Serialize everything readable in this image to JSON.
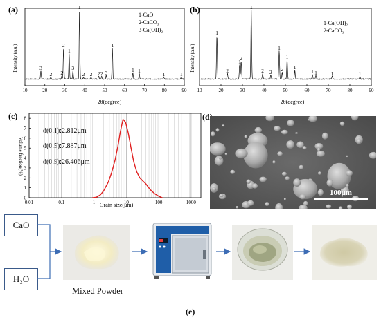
{
  "panel_a": {
    "label": "(a)",
    "ylabel": "Intensity (a.u.)",
    "xlabel": "2θ(degree)",
    "xticks": [
      "10",
      "20",
      "30",
      "40",
      "50",
      "60",
      "70",
      "80",
      "90"
    ],
    "legend": [
      "1-CaO",
      "2-CaCO₃",
      "3-Ca(OH)₂"
    ]
  },
  "panel_b": {
    "label": "(b)",
    "ylabel": "Intensity (a.u.)",
    "xlabel": "2θ(degree)",
    "xticks": [
      "10",
      "20",
      "30",
      "40",
      "50",
      "60",
      "70",
      "80",
      "90"
    ],
    "legend": [
      "1-Ca(OH)₂",
      "2-CaCO₃"
    ]
  },
  "panel_c": {
    "label": "(c)",
    "ylabel": "Volume fraction(%)",
    "xlabel": "Grain size(μm)",
    "yticks": [
      "0",
      "1",
      "2",
      "3",
      "4",
      "5",
      "6",
      "7",
      "8"
    ],
    "xticks": [
      "0.01",
      "0.1",
      "1",
      "10",
      "100",
      "1000"
    ],
    "annotations": [
      "d(0.1):2.812μm",
      "d(0.5):7.887μm",
      "d(0.9):26.406μm"
    ]
  },
  "panel_d": {
    "label": "(d)",
    "scale_bar": "100μm"
  },
  "panel_e": {
    "label": "(e)",
    "input1": "CaO",
    "input2": "H₂O",
    "mixed_caption": "Mixed Powder"
  },
  "chart_data": [
    {
      "type": "line",
      "title": "",
      "xlabel": "2θ(degree)",
      "ylabel": "Intensity (a.u.)",
      "xlim": [
        10,
        90
      ],
      "peaks": [
        {
          "x": 18.0,
          "h": 0.12,
          "label": "3"
        },
        {
          "x": 23.0,
          "h": 0.03,
          "label": "2"
        },
        {
          "x": 28.5,
          "h": 0.05,
          "label": "2"
        },
        {
          "x": 29.4,
          "h": 0.45,
          "label": "2"
        },
        {
          "x": 32.2,
          "h": 0.37,
          "label": "1"
        },
        {
          "x": 34.1,
          "h": 0.12,
          "label": "3"
        },
        {
          "x": 37.4,
          "h": 1.0,
          "label": "1"
        },
        {
          "x": 39.4,
          "h": 0.03,
          "label": "2"
        },
        {
          "x": 43.2,
          "h": 0.03,
          "label": "2"
        },
        {
          "x": 47.1,
          "h": 0.04,
          "label": "2"
        },
        {
          "x": 48.5,
          "h": 0.04,
          "label": "2"
        },
        {
          "x": 50.8,
          "h": 0.05,
          "label": "3"
        },
        {
          "x": 53.9,
          "h": 0.45,
          "label": "1"
        },
        {
          "x": 64.2,
          "h": 0.09,
          "label": "1"
        },
        {
          "x": 67.4,
          "h": 0.08,
          "label": "1"
        },
        {
          "x": 79.7,
          "h": 0.03,
          "label": "1"
        },
        {
          "x": 88.5,
          "h": 0.03,
          "label": "1"
        }
      ]
    },
    {
      "type": "line",
      "title": "",
      "xlabel": "2θ(degree)",
      "ylabel": "Intensity (a.u.)",
      "xlim": [
        10,
        90
      ],
      "peaks": [
        {
          "x": 18.1,
          "h": 0.63,
          "label": "1"
        },
        {
          "x": 23.0,
          "h": 0.08,
          "label": "2"
        },
        {
          "x": 28.7,
          "h": 0.21,
          "label": "1"
        },
        {
          "x": 29.4,
          "h": 0.26,
          "label": "2"
        },
        {
          "x": 34.1,
          "h": 1.0,
          "label": "1"
        },
        {
          "x": 39.4,
          "h": 0.08,
          "label": "2"
        },
        {
          "x": 43.2,
          "h": 0.06,
          "label": "2"
        },
        {
          "x": 47.1,
          "h": 0.41,
          "label": "1"
        },
        {
          "x": 48.5,
          "h": 0.1,
          "label": "2"
        },
        {
          "x": 50.8,
          "h": 0.28,
          "label": "1"
        },
        {
          "x": 54.4,
          "h": 0.13,
          "label": "1"
        },
        {
          "x": 62.6,
          "h": 0.07,
          "label": "1"
        },
        {
          "x": 64.2,
          "h": 0.05,
          "label": "1"
        },
        {
          "x": 71.8,
          "h": 0.04,
          "label": "1"
        },
        {
          "x": 84.7,
          "h": 0.04,
          "label": "1"
        }
      ]
    },
    {
      "type": "line",
      "title": "",
      "xlabel": "Grain size(μm)",
      "ylabel": "Volume fraction(%)",
      "xscale": "log",
      "xlim": [
        0.01,
        2000
      ],
      "ylim": [
        0,
        8.5
      ],
      "x": [
        0.9,
        1.2,
        1.6,
        2.0,
        2.8,
        3.5,
        4.5,
        5.5,
        6.5,
        7.9,
        9.5,
        11.5,
        14,
        17,
        21,
        26,
        32,
        40,
        55,
        75,
        100,
        130
      ],
      "y": [
        0,
        0.05,
        0.3,
        0.7,
        1.6,
        2.5,
        3.8,
        5.2,
        6.6,
        7.9,
        7.6,
        6.5,
        5.0,
        3.6,
        2.6,
        2.0,
        1.7,
        1.4,
        0.8,
        0.4,
        0.15,
        0
      ]
    }
  ]
}
